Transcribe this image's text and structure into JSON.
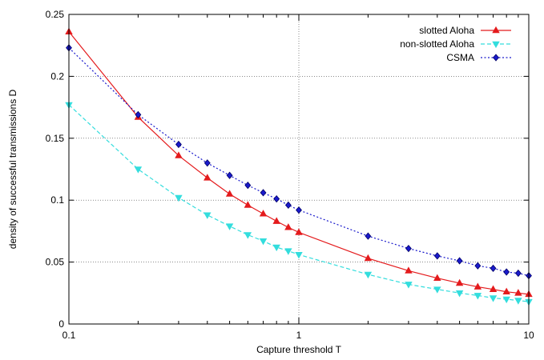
{
  "chart_data": {
    "type": "line",
    "title": "",
    "xlabel": "Capture threshold T",
    "ylabel": "density of successful transmissions D",
    "x_scale": "log",
    "xlim": [
      0.1,
      10
    ],
    "ylim": [
      0,
      0.25
    ],
    "x_ticks": [
      0.1,
      1,
      10
    ],
    "x_tick_labels": [
      "0.1",
      "1",
      "10"
    ],
    "y_ticks": [
      0,
      0.05,
      0.1,
      0.15,
      0.2,
      0.25
    ],
    "y_tick_labels": [
      "0",
      "0.05",
      "0.1",
      "0.15",
      "0.2",
      "0.25"
    ],
    "grid": "major, dotted",
    "legend_position": "top-right",
    "series": [
      {
        "name": "slotted Aloha",
        "color": "#e41a1c",
        "line_style": "solid",
        "marker": "triangle-up",
        "x": [
          0.1,
          0.2,
          0.3,
          0.4,
          0.5,
          0.6,
          0.7,
          0.8,
          0.9,
          1,
          2,
          3,
          4,
          5,
          6,
          7,
          8,
          9,
          10
        ],
        "y": [
          0.236,
          0.167,
          0.136,
          0.118,
          0.105,
          0.096,
          0.089,
          0.083,
          0.078,
          0.074,
          0.053,
          0.043,
          0.037,
          0.033,
          0.03,
          0.028,
          0.026,
          0.025,
          0.024
        ]
      },
      {
        "name": "non-slotted Aloha",
        "color": "#33dddd",
        "line_style": "dashed",
        "marker": "triangle-down",
        "x": [
          0.1,
          0.2,
          0.3,
          0.4,
          0.5,
          0.6,
          0.7,
          0.8,
          0.9,
          1,
          2,
          3,
          4,
          5,
          6,
          7,
          8,
          9,
          10
        ],
        "y": [
          0.177,
          0.125,
          0.102,
          0.088,
          0.079,
          0.072,
          0.067,
          0.062,
          0.059,
          0.056,
          0.04,
          0.032,
          0.028,
          0.025,
          0.023,
          0.021,
          0.02,
          0.019,
          0.018
        ]
      },
      {
        "name": "CSMA",
        "color": "#1a1acc",
        "line_style": "dotted",
        "marker": "diamond",
        "x": [
          0.1,
          0.2,
          0.3,
          0.4,
          0.5,
          0.6,
          0.7,
          0.8,
          0.9,
          1,
          2,
          3,
          4,
          5,
          6,
          7,
          8,
          9,
          10
        ],
        "y": [
          0.223,
          0.169,
          0.145,
          0.13,
          0.12,
          0.112,
          0.106,
          0.101,
          0.096,
          0.092,
          0.071,
          0.061,
          0.055,
          0.051,
          0.047,
          0.045,
          0.042,
          0.041,
          0.039
        ]
      }
    ]
  }
}
